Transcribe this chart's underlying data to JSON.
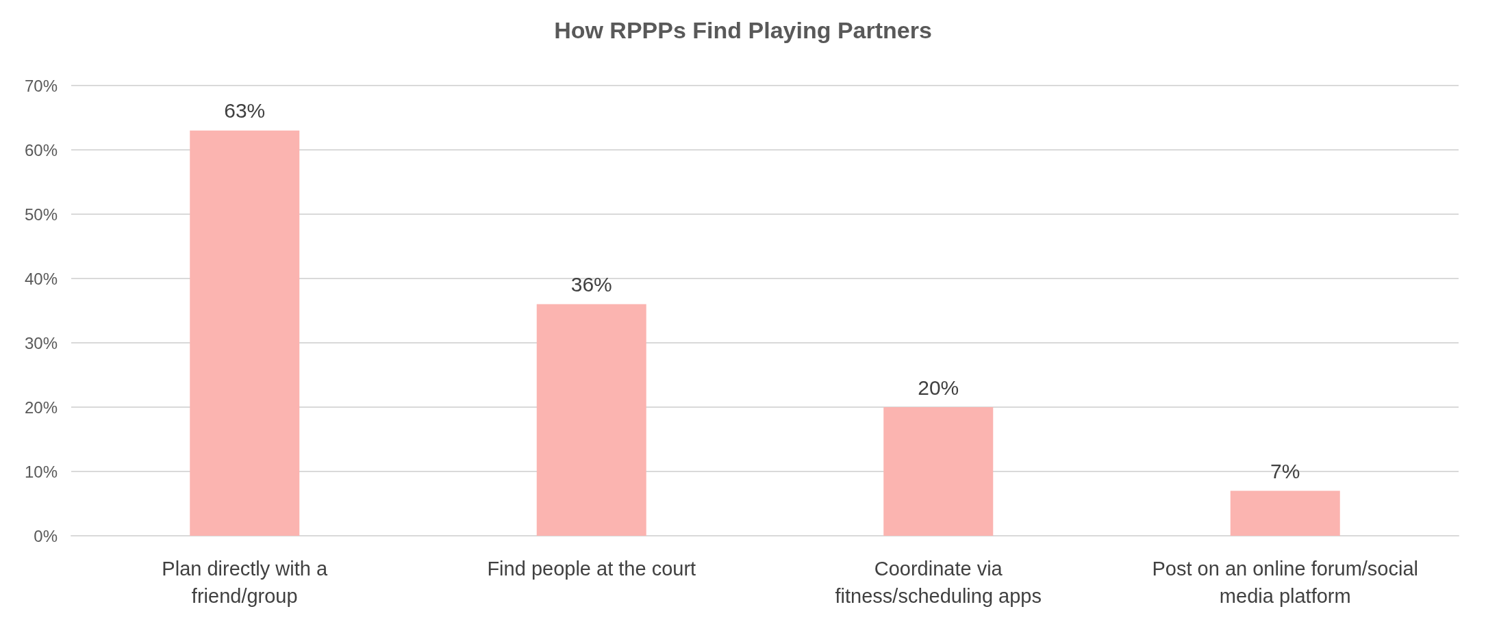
{
  "chart_data": {
    "type": "bar",
    "title": "How RPPPs Find Playing Partners",
    "categories": [
      "Plan directly with a\nfriend/group",
      "Find people at the court",
      "Coordinate via\nfitness/scheduling apps",
      "Post on an online forum/social\nmedia platform"
    ],
    "values": [
      63,
      36,
      20,
      7
    ],
    "value_labels": [
      "63%",
      "36%",
      "20%",
      "7%"
    ],
    "color": "#fbb4b0",
    "ylim": [
      0,
      70
    ],
    "yticks": [
      {
        "value": 0,
        "label": "0%"
      },
      {
        "value": 10,
        "label": "10%"
      },
      {
        "value": 20,
        "label": "20%"
      },
      {
        "value": 30,
        "label": "30%"
      },
      {
        "value": 40,
        "label": "40%"
      },
      {
        "value": 50,
        "label": "50%"
      },
      {
        "value": 60,
        "label": "60%"
      },
      {
        "value": 70,
        "label": "70%"
      }
    ],
    "grid": "y"
  }
}
